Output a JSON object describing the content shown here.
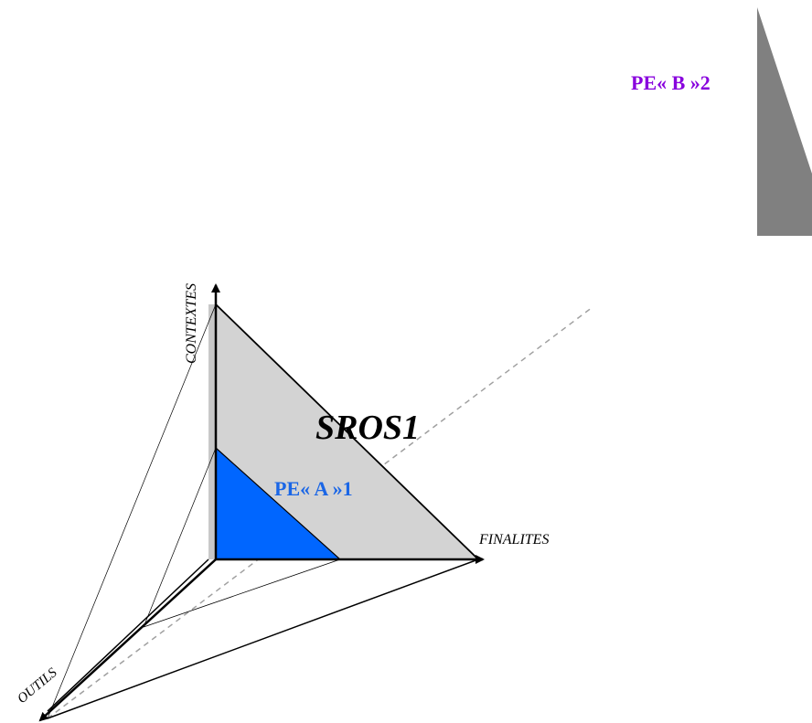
{
  "axes": {
    "vertical": "CONTEXTES",
    "horizontal": "FINALITES",
    "depth": "OUTILS"
  },
  "regions": {
    "large_triangle": "SROS1",
    "inner_triangle": "PE« A »1",
    "corner_triangle": "PE« B »2"
  },
  "colors": {
    "large_fill": "#d3d3d3",
    "inner_fill": "#0066ff",
    "inner_label": "#1a66e6",
    "corner_fill": "#808080",
    "corner_label": "#8800dd",
    "dashed": "#a0a0a0"
  }
}
